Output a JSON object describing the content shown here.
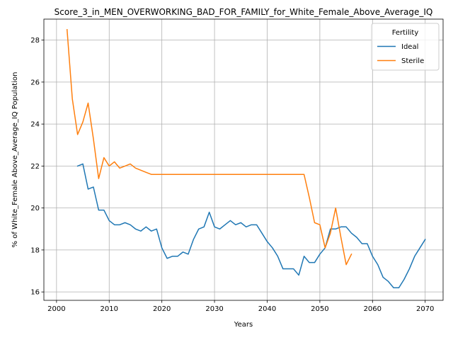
{
  "chart_data": {
    "type": "line",
    "title": "Score_3_in_MEN_OVERWORKING_BAD_FOR_FAMILY_for_White_Female_Above_Average_IQ",
    "xlabel": "Years",
    "ylabel": "% of White_Female Above_Average_IQ Population",
    "xlim": [
      1997.6,
      2073.4
    ],
    "ylim": [
      15.6,
      29.0
    ],
    "xticks": [
      2000,
      2010,
      2020,
      2030,
      2040,
      2050,
      2060,
      2070
    ],
    "yticks": [
      16,
      18,
      20,
      22,
      24,
      26,
      28
    ],
    "grid": true,
    "legend": {
      "title": "Fertility",
      "placement": "top-right"
    },
    "series": [
      {
        "name": "Ideal",
        "color": "#1f77b4",
        "x": [
          2004,
          2005,
          2006,
          2007,
          2008,
          2009,
          2010,
          2011,
          2012,
          2013,
          2014,
          2015,
          2016,
          2017,
          2018,
          2019,
          2020,
          2021,
          2022,
          2023,
          2024,
          2025,
          2026,
          2027,
          2028,
          2029,
          2030,
          2031,
          2032,
          2033,
          2034,
          2035,
          2036,
          2037,
          2038,
          2039,
          2040,
          2041,
          2042,
          2043,
          2044,
          2045,
          2046,
          2047,
          2048,
          2049,
          2050,
          2051,
          2052,
          2053,
          2054,
          2055,
          2056,
          2057,
          2058,
          2059,
          2060,
          2061,
          2062,
          2063,
          2064,
          2065,
          2066,
          2067,
          2068,
          2069,
          2070
        ],
        "y": [
          22.0,
          22.1,
          20.9,
          21.0,
          19.9,
          19.9,
          19.4,
          19.2,
          19.2,
          19.3,
          19.2,
          19.0,
          18.9,
          19.1,
          18.9,
          19.0,
          18.1,
          17.6,
          17.7,
          17.7,
          17.9,
          17.8,
          18.5,
          19.0,
          19.1,
          19.8,
          19.1,
          19.0,
          19.2,
          19.4,
          19.2,
          19.3,
          19.1,
          19.2,
          19.2,
          18.8,
          18.4,
          18.1,
          17.7,
          17.1,
          17.1,
          17.1,
          16.8,
          17.7,
          17.4,
          17.4,
          17.8,
          18.1,
          19.0,
          19.0,
          19.1,
          19.1,
          18.8,
          18.6,
          18.3,
          18.3,
          17.7,
          17.3,
          16.7,
          16.5,
          16.2,
          16.2,
          16.6,
          17.1,
          17.7,
          18.1,
          18.5
        ]
      },
      {
        "name": "Sterile",
        "color": "#ff7f0e",
        "x": [
          2002,
          2003,
          2004,
          2005,
          2006,
          2007,
          2008,
          2009,
          2010,
          2011,
          2012,
          2013,
          2014,
          2015,
          2016,
          2017,
          2018,
          2019,
          2020,
          2021,
          2022,
          2023,
          2024,
          2025,
          2026,
          2027,
          2028,
          2029,
          2030,
          2031,
          2032,
          2033,
          2034,
          2035,
          2036,
          2037,
          2038,
          2039,
          2040,
          2041,
          2042,
          2043,
          2044,
          2045,
          2046,
          2047,
          2048,
          2049,
          2050,
          2051,
          2052,
          2053,
          2054,
          2055,
          2056
        ],
        "y": [
          28.5,
          25.2,
          23.5,
          24.1,
          25.0,
          23.3,
          21.4,
          22.4,
          22.0,
          22.2,
          21.9,
          22.0,
          22.1,
          21.9,
          21.8,
          21.7,
          21.6,
          21.6,
          21.6,
          21.6,
          21.6,
          21.6,
          21.6,
          21.6,
          21.6,
          21.6,
          21.6,
          21.6,
          21.6,
          21.6,
          21.6,
          21.6,
          21.6,
          21.6,
          21.6,
          21.6,
          21.6,
          21.6,
          21.6,
          21.6,
          21.6,
          21.6,
          21.6,
          21.6,
          21.6,
          21.6,
          20.5,
          19.3,
          19.2,
          18.1,
          18.8,
          20.0,
          18.6,
          17.3,
          17.8
        ]
      }
    ]
  }
}
